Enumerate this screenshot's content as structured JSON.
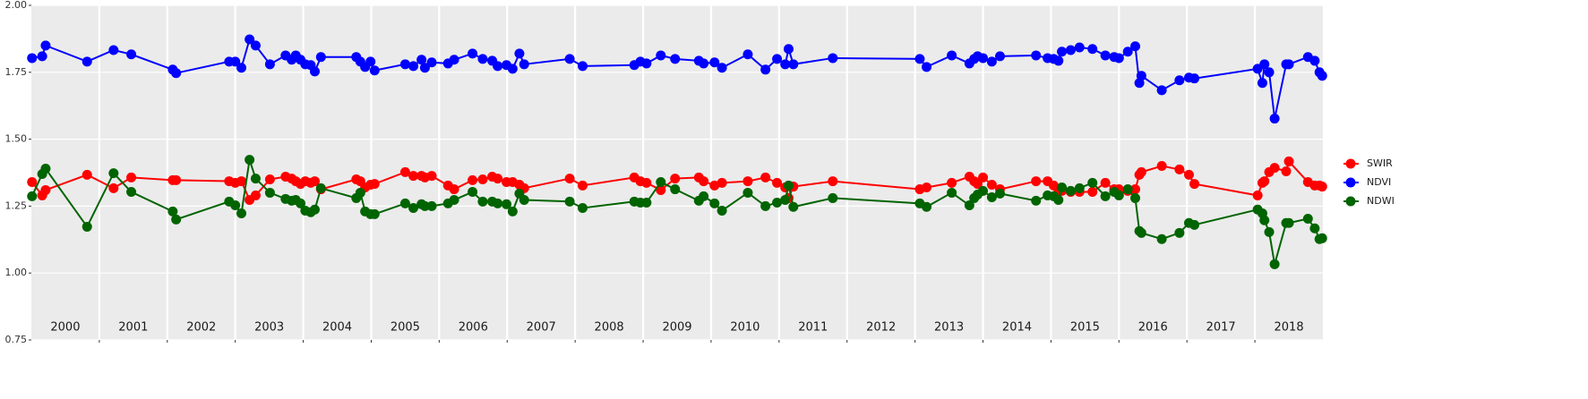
{
  "chart_data": {
    "type": "line",
    "x": [
      2000.01,
      2000.16,
      2000.21,
      2000.82,
      2001.21,
      2001.47,
      2002.08,
      2002.13,
      2002.91,
      2003.0,
      2003.09,
      2003.21,
      2003.3,
      2003.51,
      2003.74,
      2003.83,
      2003.89,
      2003.96,
      2004.03,
      2004.11,
      2004.17,
      2004.26,
      2004.78,
      2004.84,
      2004.91,
      2004.99,
      2005.05,
      2005.5,
      2005.62,
      2005.74,
      2005.79,
      2005.89,
      2006.13,
      2006.22,
      2006.49,
      2006.64,
      2006.78,
      2006.86,
      2006.99,
      2007.08,
      2007.18,
      2007.25,
      2007.92,
      2008.11,
      2008.87,
      2008.96,
      2009.05,
      2009.26,
      2009.47,
      2009.82,
      2009.89,
      2010.05,
      2010.16,
      2010.54,
      2010.8,
      2010.97,
      2011.09,
      2011.14,
      2011.21,
      2011.79,
      2013.07,
      2013.17,
      2013.54,
      2013.8,
      2013.87,
      2013.92,
      2014.0,
      2014.13,
      2014.25,
      2014.78,
      2014.95,
      2015.04,
      2015.11,
      2015.16,
      2015.29,
      2015.42,
      2015.61,
      2015.8,
      2015.93,
      2016.0,
      2016.13,
      2016.24,
      2016.3,
      2016.33,
      2016.63,
      2016.89,
      2017.03,
      2017.11,
      2018.04,
      2018.11,
      2018.14,
      2018.21,
      2018.29,
      2018.46,
      2018.5,
      2018.78,
      2018.88,
      2018.95,
      2018.99
    ],
    "series": [
      {
        "name": "SWIR",
        "color": "#ff0000",
        "values": [
          1.34,
          1.29,
          1.31,
          1.367,
          1.317,
          1.357,
          1.347,
          1.347,
          1.343,
          1.337,
          1.343,
          1.273,
          1.29,
          1.35,
          1.36,
          1.353,
          1.343,
          1.333,
          1.343,
          1.337,
          1.343,
          1.313,
          1.35,
          1.343,
          1.32,
          1.33,
          1.333,
          1.377,
          1.363,
          1.363,
          1.357,
          1.363,
          1.327,
          1.313,
          1.347,
          1.35,
          1.36,
          1.353,
          1.34,
          1.34,
          1.33,
          1.317,
          1.353,
          1.327,
          1.357,
          1.343,
          1.337,
          1.31,
          1.353,
          1.357,
          1.343,
          1.327,
          1.337,
          1.343,
          1.357,
          1.337,
          1.32,
          1.28,
          1.323,
          1.343,
          1.313,
          1.32,
          1.337,
          1.36,
          1.343,
          1.333,
          1.357,
          1.33,
          1.313,
          1.343,
          1.343,
          1.327,
          1.31,
          1.307,
          1.303,
          1.303,
          1.303,
          1.337,
          1.313,
          1.313,
          1.307,
          1.313,
          1.367,
          1.377,
          1.4,
          1.387,
          1.367,
          1.333,
          1.29,
          1.337,
          1.343,
          1.377,
          1.393,
          1.38,
          1.417,
          1.34,
          1.327,
          1.327,
          1.323
        ]
      },
      {
        "name": "NDVI",
        "color": "#0000ff",
        "values": [
          1.803,
          1.81,
          1.85,
          1.79,
          1.833,
          1.817,
          1.76,
          1.747,
          1.79,
          1.79,
          1.767,
          1.873,
          1.85,
          1.78,
          1.813,
          1.797,
          1.813,
          1.797,
          1.78,
          1.777,
          1.753,
          1.807,
          1.807,
          1.79,
          1.77,
          1.79,
          1.757,
          1.78,
          1.773,
          1.797,
          1.767,
          1.787,
          1.783,
          1.797,
          1.82,
          1.8,
          1.793,
          1.773,
          1.777,
          1.763,
          1.82,
          1.78,
          1.8,
          1.773,
          1.777,
          1.79,
          1.783,
          1.813,
          1.8,
          1.793,
          1.783,
          1.787,
          1.767,
          1.817,
          1.76,
          1.8,
          1.78,
          1.837,
          1.78,
          1.803,
          1.8,
          1.77,
          1.813,
          1.783,
          1.8,
          1.81,
          1.803,
          1.79,
          1.81,
          1.813,
          1.803,
          1.8,
          1.793,
          1.827,
          1.833,
          1.843,
          1.837,
          1.813,
          1.807,
          1.803,
          1.827,
          1.847,
          1.71,
          1.737,
          1.683,
          1.72,
          1.73,
          1.727,
          1.763,
          1.71,
          1.78,
          1.75,
          1.577,
          1.78,
          1.78,
          1.807,
          1.793,
          1.75,
          1.737
        ]
      },
      {
        "name": "NDWI",
        "color": "#006400",
        "values": [
          1.287,
          1.37,
          1.39,
          1.173,
          1.373,
          1.303,
          1.23,
          1.2,
          1.267,
          1.253,
          1.223,
          1.423,
          1.353,
          1.3,
          1.277,
          1.27,
          1.273,
          1.26,
          1.233,
          1.227,
          1.237,
          1.317,
          1.28,
          1.3,
          1.23,
          1.22,
          1.22,
          1.26,
          1.243,
          1.257,
          1.25,
          1.25,
          1.26,
          1.273,
          1.303,
          1.267,
          1.267,
          1.26,
          1.257,
          1.23,
          1.297,
          1.273,
          1.267,
          1.243,
          1.267,
          1.263,
          1.263,
          1.34,
          1.313,
          1.27,
          1.287,
          1.26,
          1.233,
          1.3,
          1.25,
          1.263,
          1.273,
          1.327,
          1.247,
          1.28,
          1.26,
          1.247,
          1.3,
          1.253,
          1.28,
          1.293,
          1.307,
          1.283,
          1.297,
          1.27,
          1.29,
          1.287,
          1.273,
          1.32,
          1.307,
          1.317,
          1.337,
          1.287,
          1.303,
          1.29,
          1.313,
          1.28,
          1.157,
          1.15,
          1.127,
          1.15,
          1.187,
          1.18,
          1.237,
          1.223,
          1.197,
          1.153,
          1.033,
          1.187,
          1.187,
          1.203,
          1.167,
          1.127,
          1.13
        ]
      }
    ],
    "xlim": [
      2000,
      2019
    ],
    "xticks": [
      {
        "value": 2000.5,
        "label": "2000"
      },
      {
        "value": 2001.5,
        "label": "2001"
      },
      {
        "value": 2002.5,
        "label": "2002"
      },
      {
        "value": 2003.5,
        "label": "2003"
      },
      {
        "value": 2004.5,
        "label": "2004"
      },
      {
        "value": 2005.5,
        "label": "2005"
      },
      {
        "value": 2006.5,
        "label": "2006"
      },
      {
        "value": 2007.5,
        "label": "2007"
      },
      {
        "value": 2008.5,
        "label": "2008"
      },
      {
        "value": 2009.5,
        "label": "2009"
      },
      {
        "value": 2010.5,
        "label": "2010"
      },
      {
        "value": 2011.5,
        "label": "2011"
      },
      {
        "value": 2012.5,
        "label": "2012"
      },
      {
        "value": 2013.5,
        "label": "2013"
      },
      {
        "value": 2014.5,
        "label": "2014"
      },
      {
        "value": 2015.5,
        "label": "2015"
      },
      {
        "value": 2016.5,
        "label": "2016"
      },
      {
        "value": 2017.5,
        "label": "2017"
      },
      {
        "value": 2018.5,
        "label": "2018"
      }
    ],
    "xgrid": [
      2001,
      2002,
      2003,
      2004,
      2005,
      2006,
      2007,
      2008,
      2009,
      2010,
      2011,
      2012,
      2013,
      2014,
      2015,
      2016,
      2017,
      2018
    ],
    "ylim": [
      0.75,
      2.0
    ],
    "yticks": [
      {
        "value": 0.75,
        "label": "0.75"
      },
      {
        "value": 1.0,
        "label": "1.00"
      },
      {
        "value": 1.25,
        "label": "1.25"
      },
      {
        "value": 1.5,
        "label": "1.50"
      },
      {
        "value": 1.75,
        "label": "1.75"
      },
      {
        "value": 2.0,
        "label": "2.00"
      }
    ],
    "grid": true
  }
}
